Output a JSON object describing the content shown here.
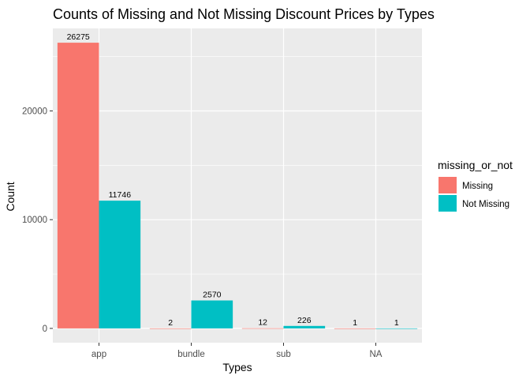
{
  "chart_data": {
    "type": "bar",
    "title": "Counts of Missing and Not Missing Discount Prices by Types",
    "xlabel": "Types",
    "ylabel": "Count",
    "categories": [
      "app",
      "bundle",
      "sub",
      "NA"
    ],
    "series": [
      {
        "name": "Missing",
        "color": "#F8766D",
        "values": [
          26275,
          2,
          12,
          1
        ]
      },
      {
        "name": "Not Missing",
        "color": "#00BFC4",
        "values": [
          11746,
          2570,
          226,
          1
        ]
      }
    ],
    "yticks": [
      0,
      10000,
      20000
    ],
    "ylim": [
      -1314,
      27589
    ],
    "grid": true,
    "legend": {
      "title": "missing_or_not",
      "placement": "right"
    },
    "panel_background": "#EBEBEB",
    "grid_color": "#FFFFFF"
  }
}
